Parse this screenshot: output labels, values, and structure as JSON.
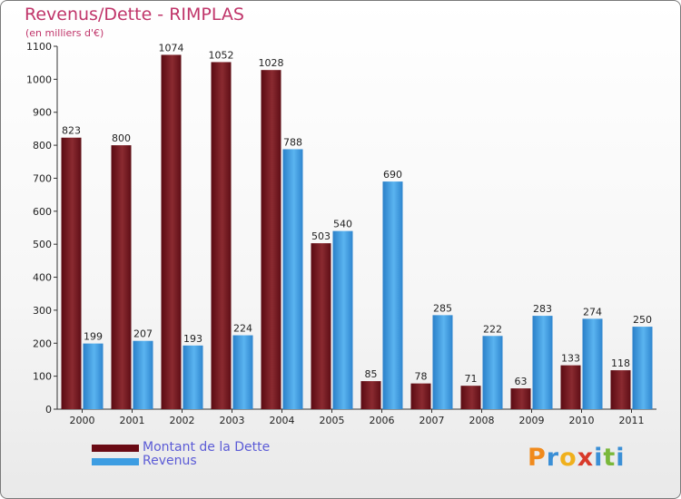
{
  "chart_data": {
    "type": "bar",
    "title": "Revenus/Dette - RIMPLAS",
    "subtitle": "(en milliers d'€)",
    "categories": [
      "2000",
      "2001",
      "2002",
      "2003",
      "2004",
      "2005",
      "2006",
      "2007",
      "2008",
      "2009",
      "2010",
      "2011"
    ],
    "series": [
      {
        "name": "Montant de la Dette",
        "color": "#7a1a22",
        "values": [
          823,
          800,
          1074,
          1052,
          1028,
          503,
          85,
          78,
          71,
          63,
          133,
          118
        ]
      },
      {
        "name": "Revenus",
        "color": "#3d9de2",
        "values": [
          199,
          207,
          193,
          224,
          788,
          540,
          690,
          285,
          222,
          283,
          274,
          250
        ]
      }
    ],
    "ylim": [
      0,
      1100
    ],
    "yticks": [
      0,
      100,
      200,
      300,
      400,
      500,
      600,
      700,
      800,
      900,
      1000,
      1100
    ],
    "grid": false,
    "legend": "bottom-left",
    "xlabel": "",
    "ylabel": ""
  },
  "logo": {
    "letters": [
      "P",
      "r",
      "o",
      "x",
      "i",
      "t",
      "i"
    ],
    "colors": [
      "#f08a1c",
      "#3a8fd6",
      "#f0b01c",
      "#d83a2a",
      "#3a8fd6",
      "#7ab83a",
      "#3a8fd6"
    ]
  }
}
